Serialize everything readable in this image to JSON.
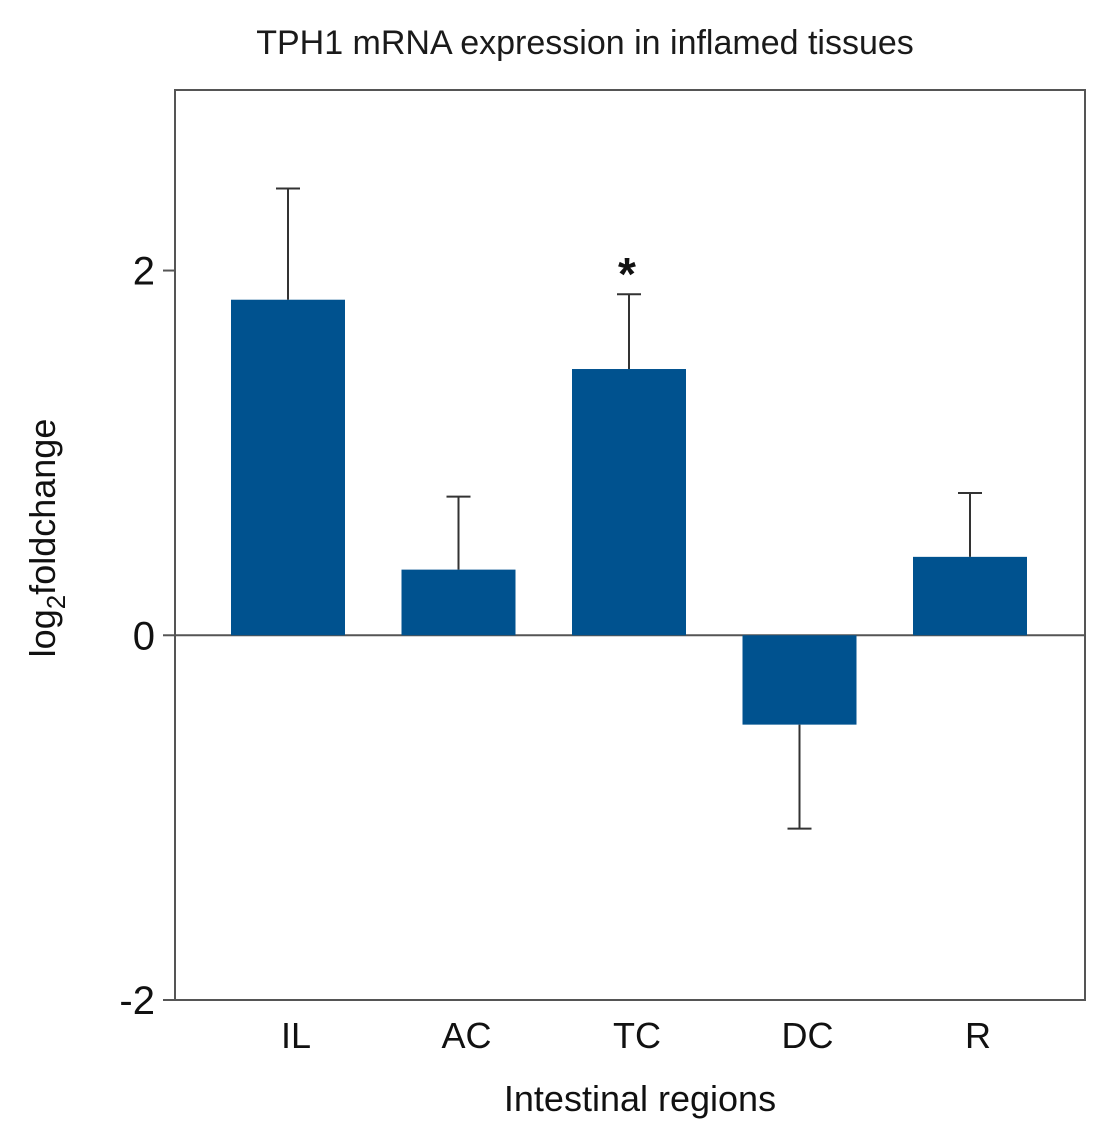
{
  "chart_data": {
    "type": "bar",
    "title": "TPH1 mRNA expression in inflamed tissues",
    "xlabel": "Intestinal regions",
    "ylabel": {
      "prefix": "log",
      "subscript": "2",
      "suffix": "foldchange"
    },
    "ylim": [
      -2,
      2.99
    ],
    "yticks": [
      -2,
      0,
      2
    ],
    "ytick_labels": [
      "-2",
      "0",
      "2"
    ],
    "categories": [
      "IL",
      "AC",
      "TC",
      "DC",
      "R"
    ],
    "values": [
      1.84,
      0.36,
      1.46,
      -0.49,
      0.43
    ],
    "error_upper": [
      2.45,
      0.76,
      1.87,
      -1.06,
      0.78
    ],
    "significance": [
      "",
      "",
      "*",
      "",
      ""
    ],
    "bar_color": "#00528f"
  }
}
